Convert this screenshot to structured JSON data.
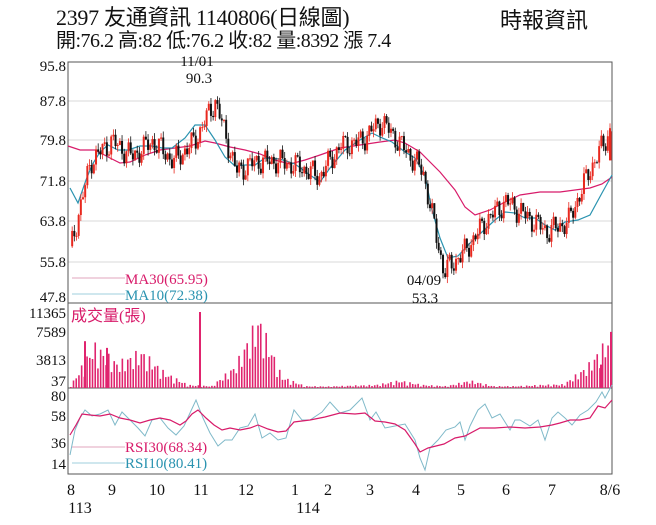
{
  "header": {
    "title": "2397  友通資訊 1140806(日線圖)",
    "ohlc": "開:76.2 高:82 低:76.2 收:82 量:8392 漲 7.4",
    "source": "時報資訊"
  },
  "colors": {
    "up": "#e8281e",
    "down": "#111111",
    "ma30": "#d81b6a",
    "ma10": "#2a93b0",
    "volume": "#e0246e",
    "grid": "#d9d9d9",
    "frame": "#555555"
  },
  "chart_data": [
    {
      "type": "candlestick",
      "title": "2397 友通資訊 1140806(日線圖)",
      "ylabel": "Price",
      "yticks": [
        95.8,
        87.8,
        79.8,
        71.8,
        63.8,
        55.8,
        47.8
      ],
      "ylim": [
        47.8,
        95.8
      ],
      "open": 76.2,
      "high": 82,
      "low": 76.2,
      "close": 82,
      "volume": 8392,
      "change": 7.4,
      "annotations": [
        {
          "date": "11/01",
          "value": 90.3,
          "label": "11/01\n90.3",
          "kind": "high"
        },
        {
          "date": "04/09",
          "value": 53.3,
          "label": "04/09\n53.3",
          "kind": "low"
        }
      ],
      "legend": [
        {
          "name": "MA30",
          "value": 65.95,
          "label": "MA30(65.95)"
        },
        {
          "name": "MA10",
          "value": 72.38,
          "label": "MA10(72.38)"
        }
      ],
      "series": [
        {
          "name": "Close (approx)",
          "x": [
            "8",
            "8.5",
            "9",
            "9.5",
            "10",
            "10.5",
            "11",
            "11.1",
            "11.5",
            "12",
            "12.5",
            "1",
            "1.5",
            "2",
            "2.5",
            "3",
            "3.5",
            "4",
            "4.3",
            "4.5",
            "5",
            "5.5",
            "6",
            "6.5",
            "7",
            "7.5",
            "8/6"
          ],
          "values": [
            58,
            76,
            80,
            77,
            80,
            76,
            80,
            88,
            74,
            76,
            76,
            75,
            73,
            79,
            80,
            84,
            79,
            74,
            54,
            58,
            64,
            68,
            65,
            62,
            64,
            74,
            82
          ]
        },
        {
          "name": "MA10 (approx)",
          "values": [
            68,
            72,
            77,
            76,
            78,
            76,
            79,
            82,
            74,
            75,
            76,
            75,
            73,
            77,
            80,
            80,
            78,
            73,
            60,
            58,
            62,
            65,
            65,
            63,
            64,
            68,
            72.38
          ]
        },
        {
          "name": "MA30 (approx)",
          "values": [
            78,
            77,
            76,
            76,
            77,
            77,
            78,
            79,
            77,
            77,
            76,
            75,
            75,
            76,
            77,
            78,
            78,
            78,
            72,
            64,
            60,
            63,
            64,
            64,
            64,
            65,
            65.95
          ]
        }
      ]
    },
    {
      "type": "bar",
      "title": "成交量(張)",
      "ylabel": "成交量(張)",
      "yticks": [
        11365,
        7589,
        3813,
        37
      ],
      "ylim": [
        37,
        11365
      ],
      "categories": [
        "8",
        "8.3",
        "8.5",
        "9",
        "9.3",
        "10",
        "10.5",
        "11",
        "11.1",
        "11.3",
        "12",
        "1",
        "2",
        "3",
        "4",
        "4.3",
        "5",
        "5.5",
        "6",
        "6.5",
        "7",
        "7.5",
        "8/1",
        "8/6"
      ],
      "values": [
        400,
        7000,
        4000,
        6000,
        2500,
        500,
        300,
        3500,
        11365,
        1800,
        300,
        250,
        400,
        500,
        1200,
        500,
        300,
        1200,
        300,
        300,
        500,
        600,
        3500,
        8392
      ]
    },
    {
      "type": "line",
      "title": "RSI",
      "yticks": [
        80,
        58,
        36,
        14
      ],
      "ylim": [
        14,
        80
      ],
      "legend": [
        {
          "name": "RSI30",
          "value": 68.34,
          "label": "RSI30(68.34)"
        },
        {
          "name": "RSI10",
          "value": 80.41,
          "label": "RSI10(80.41)"
        }
      ],
      "series": [
        {
          "name": "RSI30 (approx)",
          "values": [
            42,
            55,
            54,
            56,
            53,
            53,
            50,
            58,
            42,
            47,
            52,
            52,
            46,
            56,
            60,
            58,
            52,
            30,
            37,
            45,
            50,
            52,
            52,
            55,
            57,
            62,
            68.34
          ]
        },
        {
          "name": "RSI10 (approx)",
          "values": [
            22,
            60,
            50,
            65,
            40,
            55,
            40,
            78,
            20,
            45,
            60,
            55,
            35,
            68,
            75,
            62,
            45,
            14,
            30,
            55,
            70,
            48,
            52,
            65,
            55,
            72,
            80.41
          ]
        }
      ]
    }
  ],
  "axes": {
    "price_ticks": [
      "95.8",
      "87.8",
      "79.8",
      "71.8",
      "63.8",
      "55.8",
      "47.8"
    ],
    "volume_ticks": [
      "11365",
      "7589",
      "3813",
      "37"
    ],
    "rsi_ticks": [
      "80",
      "58",
      "36",
      "14"
    ],
    "x_months": [
      "8",
      "9",
      "10",
      "11",
      "12",
      "1",
      "2",
      "3",
      "4",
      "5",
      "6",
      "7",
      "8/6"
    ],
    "x_years": [
      "113",
      "114"
    ]
  },
  "labels": {
    "high_date": "11/01",
    "high_value": "90.3",
    "low_date": "04/09",
    "low_value": "53.3",
    "ma30": "MA30(65.95)",
    "ma10": "MA10(72.38)",
    "volume": "成交量(張)",
    "rsi30": "RSI30(68.34)",
    "rsi10": "RSI10(80.41)"
  }
}
